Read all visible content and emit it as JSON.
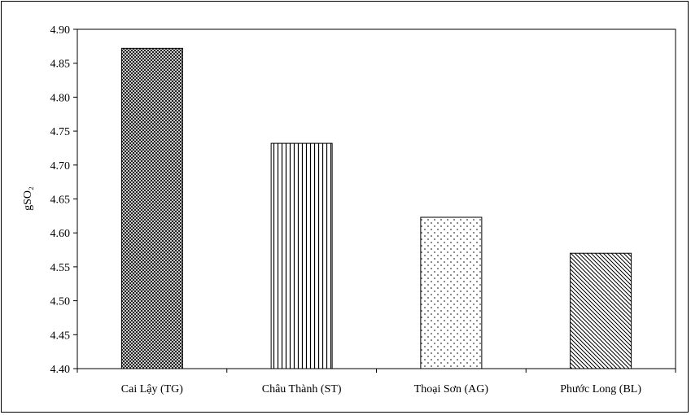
{
  "chart_data": {
    "type": "bar",
    "ylabel": "gSO₂",
    "ylim": [
      4.4,
      4.9
    ],
    "y_ticks": [
      "4.40",
      "4.45",
      "4.50",
      "4.55",
      "4.60",
      "4.65",
      "4.70",
      "4.75",
      "4.80",
      "4.85",
      "4.90"
    ],
    "categories": [
      "Cai Lậy (TG)",
      "Châu Thành (ST)",
      "Thoại Sơn (AG)",
      "Phước Long (BL)"
    ],
    "values": [
      4.872,
      4.732,
      4.623,
      4.57
    ],
    "patterns": [
      "crosshatch",
      "vertical-lines",
      "dots",
      "diagonal-lines"
    ],
    "grid": false,
    "legend": "none"
  }
}
